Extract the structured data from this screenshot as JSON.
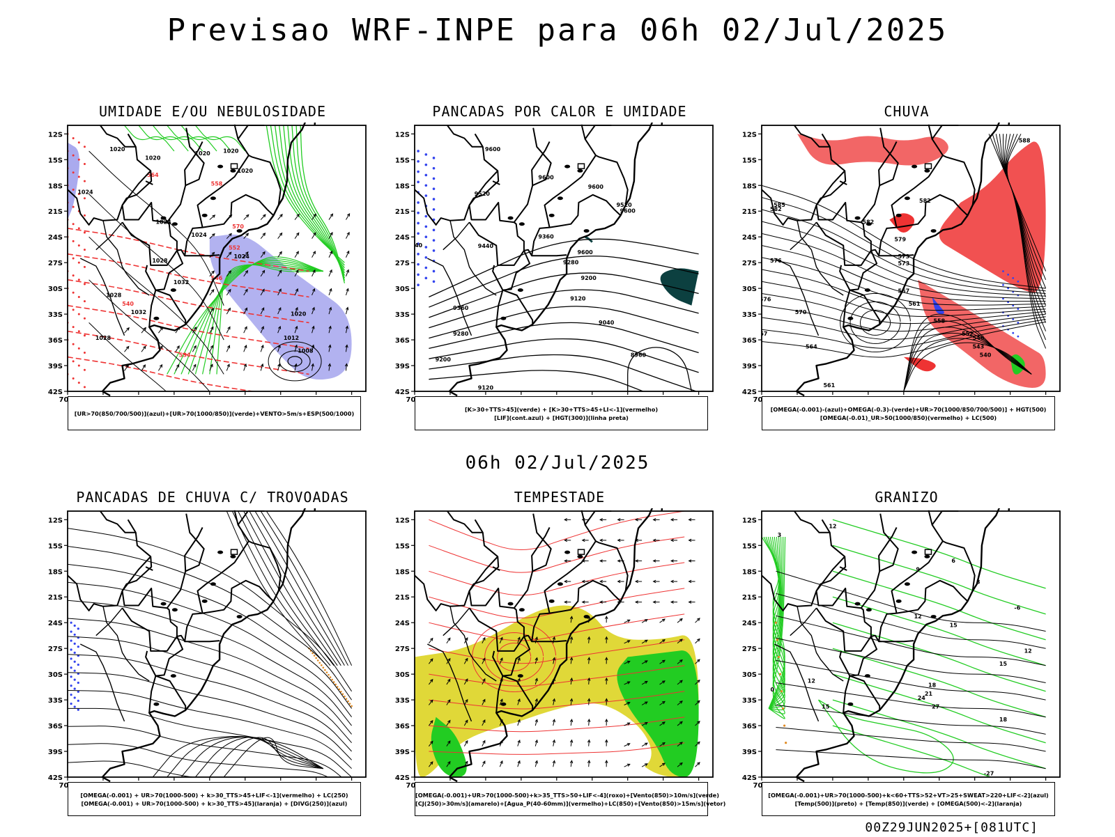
{
  "header": {
    "title": "Previsao WRF-INPE  para 06h 02/Jul/2025",
    "mid_title": "06h 02/Jul/2025",
    "footer": "00Z29JUN2025+[081UTC]"
  },
  "axes": {
    "lat_ticks": [
      "12S",
      "15S",
      "18S",
      "21S",
      "24S",
      "27S",
      "30S",
      "33S",
      "36S",
      "39S",
      "42S"
    ],
    "lon_ticks": [
      "70W",
      "65W",
      "60W",
      "55W",
      "50W",
      "45W",
      "40W",
      "35W",
      "30W"
    ]
  },
  "panels": [
    {
      "title": "UMIDADE E/OU NEBULOSIDADE",
      "legend": [
        "[UR>70(850/700/500)](azul)+[UR>70(1000/850)](verde)+VENTO>5m/s+ESP(500/1000)"
      ],
      "contour_labels": [
        "1020",
        "1020",
        "1020",
        "1020",
        "1020",
        "1024",
        "1024",
        "1024",
        "1028",
        "1032",
        "1028",
        "1032",
        "1028",
        "1012",
        "1020",
        "1008",
        "1024",
        "570",
        "564",
        "558",
        "552",
        "546",
        "540",
        "534"
      ]
    },
    {
      "title": "PANCADAS POR CALOR E UMIDADE",
      "legend": [
        "[K>30+TTS>45](verde) + [K>30+TTS>45+LI<-1](vermelho)",
        "[LIF](cont.azul) + [HGT(300)](linha preta)"
      ],
      "contour_labels": [
        "9600",
        "9600",
        "9600",
        "9520",
        "9520",
        "9440",
        "9440",
        "9360",
        "9280",
        "9200",
        "9120",
        "9040",
        "8960",
        "9360",
        "9280",
        "9200",
        "9120",
        "9600",
        "9600"
      ]
    },
    {
      "title": "CHUVA",
      "legend": [
        "[OMEGA(-0.001)-(azul)+OMEGA(-0.3)-(verde)+UR>70(1000/850/700/500)] + HGT(500)",
        "[OMEGA(-0.01)_UR>50(1000/850)(vermelho) + LC(500)"
      ],
      "contour_labels": [
        "582",
        "585",
        "582",
        "582",
        "579",
        "576",
        "573",
        "570",
        "567",
        "564",
        "561",
        "576",
        "573",
        "567",
        "561",
        "558",
        "552",
        "546",
        "543",
        "540",
        "588"
      ]
    },
    {
      "title": "PANCADAS DE CHUVA C/ TROVOADAS",
      "legend": [
        "[OMEGA(-0.001) + UR>70(1000-500) + k>30_TTS>45+LIF<-1](vermelho) + LC(250)",
        "[OMEGA(-0.001) + UR>70(1000-500) + k>30_TTS>45](laranja) + [DIVG(250)](azul)"
      ],
      "contour_labels": []
    },
    {
      "title": "TEMPESTADE",
      "legend": [
        "[OMEGA(-0.001)+UR>70(1000-500)+k>35_TTS>50+LIF<-4](roxo)+[Vento(850)>10m/s](verde)",
        "[CJ(250)>30m/s](amarelo)+[Agua_P(40-60mm)](vermelho)+LC(850)+[Vento(850)>15m/s](vetor)"
      ],
      "contour_labels": []
    },
    {
      "title": "GRANIZO",
      "legend": [
        "[OMEGA(-0.001)+UR>70(1000-500)+k<60+TTS>52+VT>25+SWEAT>220+LIF<-2](azul)",
        "[Temp(500)](preto) + [Temp(850)](verde) + [OMEGA(500)<-2](laranja)"
      ],
      "contour_labels": [
        "12",
        "9",
        "6",
        "3",
        "12",
        "15",
        "18",
        "21",
        "24",
        "27",
        "18",
        "15",
        "12",
        "-27",
        "0",
        "12",
        "15",
        "3",
        "-6"
      ]
    }
  ],
  "colors": {
    "green": "#22cc22",
    "red": "#ee3333",
    "blue": "#3344ee",
    "lavender": "#aaaaee",
    "yellow": "#e0d838",
    "orange": "#e08a22",
    "teal": "#0c4040"
  }
}
